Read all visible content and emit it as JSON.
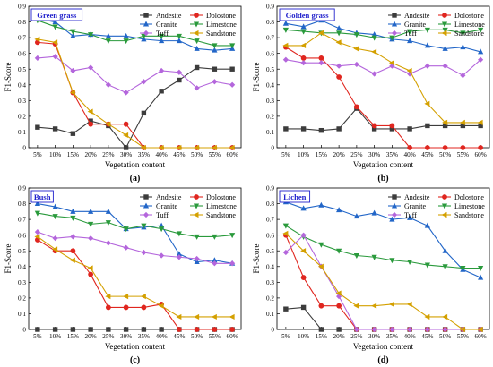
{
  "chart_data": [
    {
      "type": "line",
      "panel_label": "(a)",
      "title": "Green grass",
      "xlabel": "Vegetation content",
      "ylabel": "F1-Score",
      "categories": [
        "5%",
        "10%",
        "15%",
        "20%",
        "25%",
        "30%",
        "35%",
        "40%",
        "45%",
        "50%",
        "55%",
        "60%"
      ],
      "ylim": [
        0,
        0.9
      ],
      "yticks": [
        "0",
        "0.1",
        "0.2",
        "0.3",
        "0.4",
        "0.5",
        "0.6",
        "0.7",
        "0.8",
        "0.9"
      ],
      "series": [
        {
          "name": "Andesite",
          "values": [
            0.13,
            0.12,
            0.09,
            0.17,
            0.14,
            0.0,
            0.22,
            0.36,
            0.43,
            0.51,
            0.5,
            0.5
          ]
        },
        {
          "name": "Dolostone",
          "values": [
            0.67,
            0.66,
            0.35,
            0.15,
            0.15,
            0.15,
            0.0,
            0.0,
            0.0,
            0.0,
            0.0,
            0.0
          ]
        },
        {
          "name": "Granite",
          "values": [
            0.82,
            0.8,
            0.71,
            0.72,
            0.71,
            0.71,
            0.69,
            0.68,
            0.68,
            0.63,
            0.62,
            0.63
          ]
        },
        {
          "name": "Limestone",
          "values": [
            0.81,
            0.77,
            0.74,
            0.72,
            0.68,
            0.68,
            0.71,
            0.71,
            0.71,
            0.68,
            0.65,
            0.65
          ]
        },
        {
          "name": "Tuff",
          "values": [
            0.57,
            0.58,
            0.49,
            0.51,
            0.4,
            0.35,
            0.42,
            0.49,
            0.48,
            0.38,
            0.42,
            0.4
          ]
        },
        {
          "name": "Sandstone",
          "values": [
            0.69,
            0.67,
            0.35,
            0.23,
            0.15,
            0.08,
            0.0,
            0.0,
            0.0,
            0.0,
            0.0,
            0.0
          ]
        }
      ]
    },
    {
      "type": "line",
      "panel_label": "(b)",
      "title": "Golden grass",
      "xlabel": "Vegetation content",
      "ylabel": "F1-Score",
      "categories": [
        "5%",
        "10%",
        "15%",
        "20%",
        "25%",
        "30%",
        "35%",
        "40%",
        "45%",
        "50%",
        "55%",
        "60%"
      ],
      "ylim": [
        0,
        0.9
      ],
      "yticks": [
        "0",
        "0.1",
        "0.2",
        "0.3",
        "0.4",
        "0.5",
        "0.6",
        "0.7",
        "0.8",
        "0.9"
      ],
      "series": [
        {
          "name": "Andesite",
          "values": [
            0.12,
            0.12,
            0.11,
            0.12,
            0.25,
            0.12,
            0.12,
            0.12,
            0.14,
            0.14,
            0.14,
            0.14
          ]
        },
        {
          "name": "Dolostone",
          "values": [
            0.64,
            0.57,
            0.57,
            0.45,
            0.26,
            0.14,
            0.14,
            0.0,
            0.0,
            0.0,
            0.0,
            0.0
          ]
        },
        {
          "name": "Granite",
          "values": [
            0.79,
            0.77,
            0.81,
            0.76,
            0.73,
            0.72,
            0.69,
            0.68,
            0.65,
            0.63,
            0.64,
            0.61
          ]
        },
        {
          "name": "Limestone",
          "values": [
            0.75,
            0.74,
            0.73,
            0.73,
            0.72,
            0.7,
            0.7,
            0.74,
            0.75,
            0.75,
            0.73,
            0.75
          ]
        },
        {
          "name": "Tuff",
          "values": [
            0.56,
            0.54,
            0.54,
            0.52,
            0.53,
            0.47,
            0.52,
            0.47,
            0.52,
            0.52,
            0.46,
            0.56
          ]
        },
        {
          "name": "Sandstone",
          "values": [
            0.65,
            0.65,
            0.73,
            0.67,
            0.63,
            0.61,
            0.54,
            0.49,
            0.28,
            0.16,
            0.16,
            0.16
          ]
        }
      ]
    },
    {
      "type": "line",
      "panel_label": "(c)",
      "title": "Bush",
      "xlabel": "Vegetation content",
      "ylabel": "F1-Score",
      "categories": [
        "5%",
        "10%",
        "15%",
        "20%",
        "25%",
        "30%",
        "35%",
        "40%",
        "45%",
        "50%",
        "55%",
        "60%"
      ],
      "ylim": [
        0,
        0.9
      ],
      "yticks": [
        "0",
        "0.1",
        "0.2",
        "0.3",
        "0.4",
        "0.5",
        "0.6",
        "0.7",
        "0.8",
        "0.9"
      ],
      "series": [
        {
          "name": "Andesite",
          "values": [
            0.0,
            0.0,
            0.0,
            0.0,
            0.0,
            0.0,
            0.0,
            0.0,
            0.0,
            0.0,
            0.0,
            0.0
          ]
        },
        {
          "name": "Dolostone",
          "values": [
            0.57,
            0.5,
            0.5,
            0.35,
            0.14,
            0.14,
            0.14,
            0.16,
            0.0,
            0.0,
            0.0,
            0.0
          ]
        },
        {
          "name": "Granite",
          "values": [
            0.8,
            0.78,
            0.75,
            0.75,
            0.75,
            0.64,
            0.65,
            0.66,
            0.48,
            0.43,
            0.44,
            0.42
          ]
        },
        {
          "name": "Limestone",
          "values": [
            0.74,
            0.72,
            0.71,
            0.67,
            0.68,
            0.64,
            0.66,
            0.64,
            0.61,
            0.59,
            0.59,
            0.6
          ]
        },
        {
          "name": "Tuff",
          "values": [
            0.62,
            0.58,
            0.59,
            0.58,
            0.55,
            0.52,
            0.49,
            0.47,
            0.46,
            0.45,
            0.42,
            0.42
          ]
        },
        {
          "name": "Sandstone",
          "values": [
            0.59,
            0.51,
            0.44,
            0.39,
            0.21,
            0.21,
            0.21,
            0.15,
            0.08,
            0.08,
            0.08,
            0.08
          ]
        }
      ]
    },
    {
      "type": "line",
      "panel_label": "(d)",
      "title": "Lichen",
      "xlabel": "Vegetation content",
      "ylabel": "F1-Score",
      "categories": [
        "5%",
        "10%",
        "15%",
        "20%",
        "25%",
        "30%",
        "35%",
        "40%",
        "45%",
        "50%",
        "55%",
        "60%"
      ],
      "ylim": [
        0,
        0.9
      ],
      "yticks": [
        "0",
        "0.1",
        "0.2",
        "0.3",
        "0.4",
        "0.5",
        "0.6",
        "0.7",
        "0.8",
        "0.9"
      ],
      "series": [
        {
          "name": "Andesite",
          "values": [
            0.13,
            0.14,
            0.0,
            0.0,
            0.0,
            0.0,
            0.0,
            0.0,
            0.0,
            0.0,
            0.0,
            0.0
          ]
        },
        {
          "name": "Dolostone",
          "values": [
            0.6,
            0.33,
            0.15,
            0.15,
            0.0,
            0.0,
            0.0,
            0.0,
            0.0,
            0.0,
            0.0,
            0.0
          ]
        },
        {
          "name": "Granite",
          "values": [
            0.81,
            0.77,
            0.79,
            0.76,
            0.72,
            0.74,
            0.7,
            0.71,
            0.66,
            0.5,
            0.38,
            0.33
          ]
        },
        {
          "name": "Limestone",
          "values": [
            0.66,
            0.59,
            0.54,
            0.5,
            0.47,
            0.46,
            0.44,
            0.43,
            0.41,
            0.4,
            0.39,
            0.39
          ]
        },
        {
          "name": "Tuff",
          "values": [
            0.49,
            0.6,
            0.4,
            0.21,
            0.0,
            0.0,
            0.0,
            0.0,
            0.0,
            0.0,
            0.0,
            0.0
          ]
        },
        {
          "name": "Sandstone",
          "values": [
            0.61,
            0.5,
            0.4,
            0.23,
            0.15,
            0.15,
            0.16,
            0.16,
            0.08,
            0.08,
            0.0,
            0.0
          ]
        }
      ]
    }
  ],
  "series_style": [
    {
      "name": "Andesite",
      "color": "#3c3c3c",
      "marker": "square"
    },
    {
      "name": "Dolostone",
      "color": "#e0261f",
      "marker": "circle"
    },
    {
      "name": "Granite",
      "color": "#2266c8",
      "marker": "triangle-up"
    },
    {
      "name": "Limestone",
      "color": "#2a9a3c",
      "marker": "triangle-down"
    },
    {
      "name": "Tuff",
      "color": "#b466dc",
      "marker": "diamond"
    },
    {
      "name": "Sandstone",
      "color": "#d4a000",
      "marker": "triangle-left"
    }
  ],
  "title_box_color": "#2222cc"
}
